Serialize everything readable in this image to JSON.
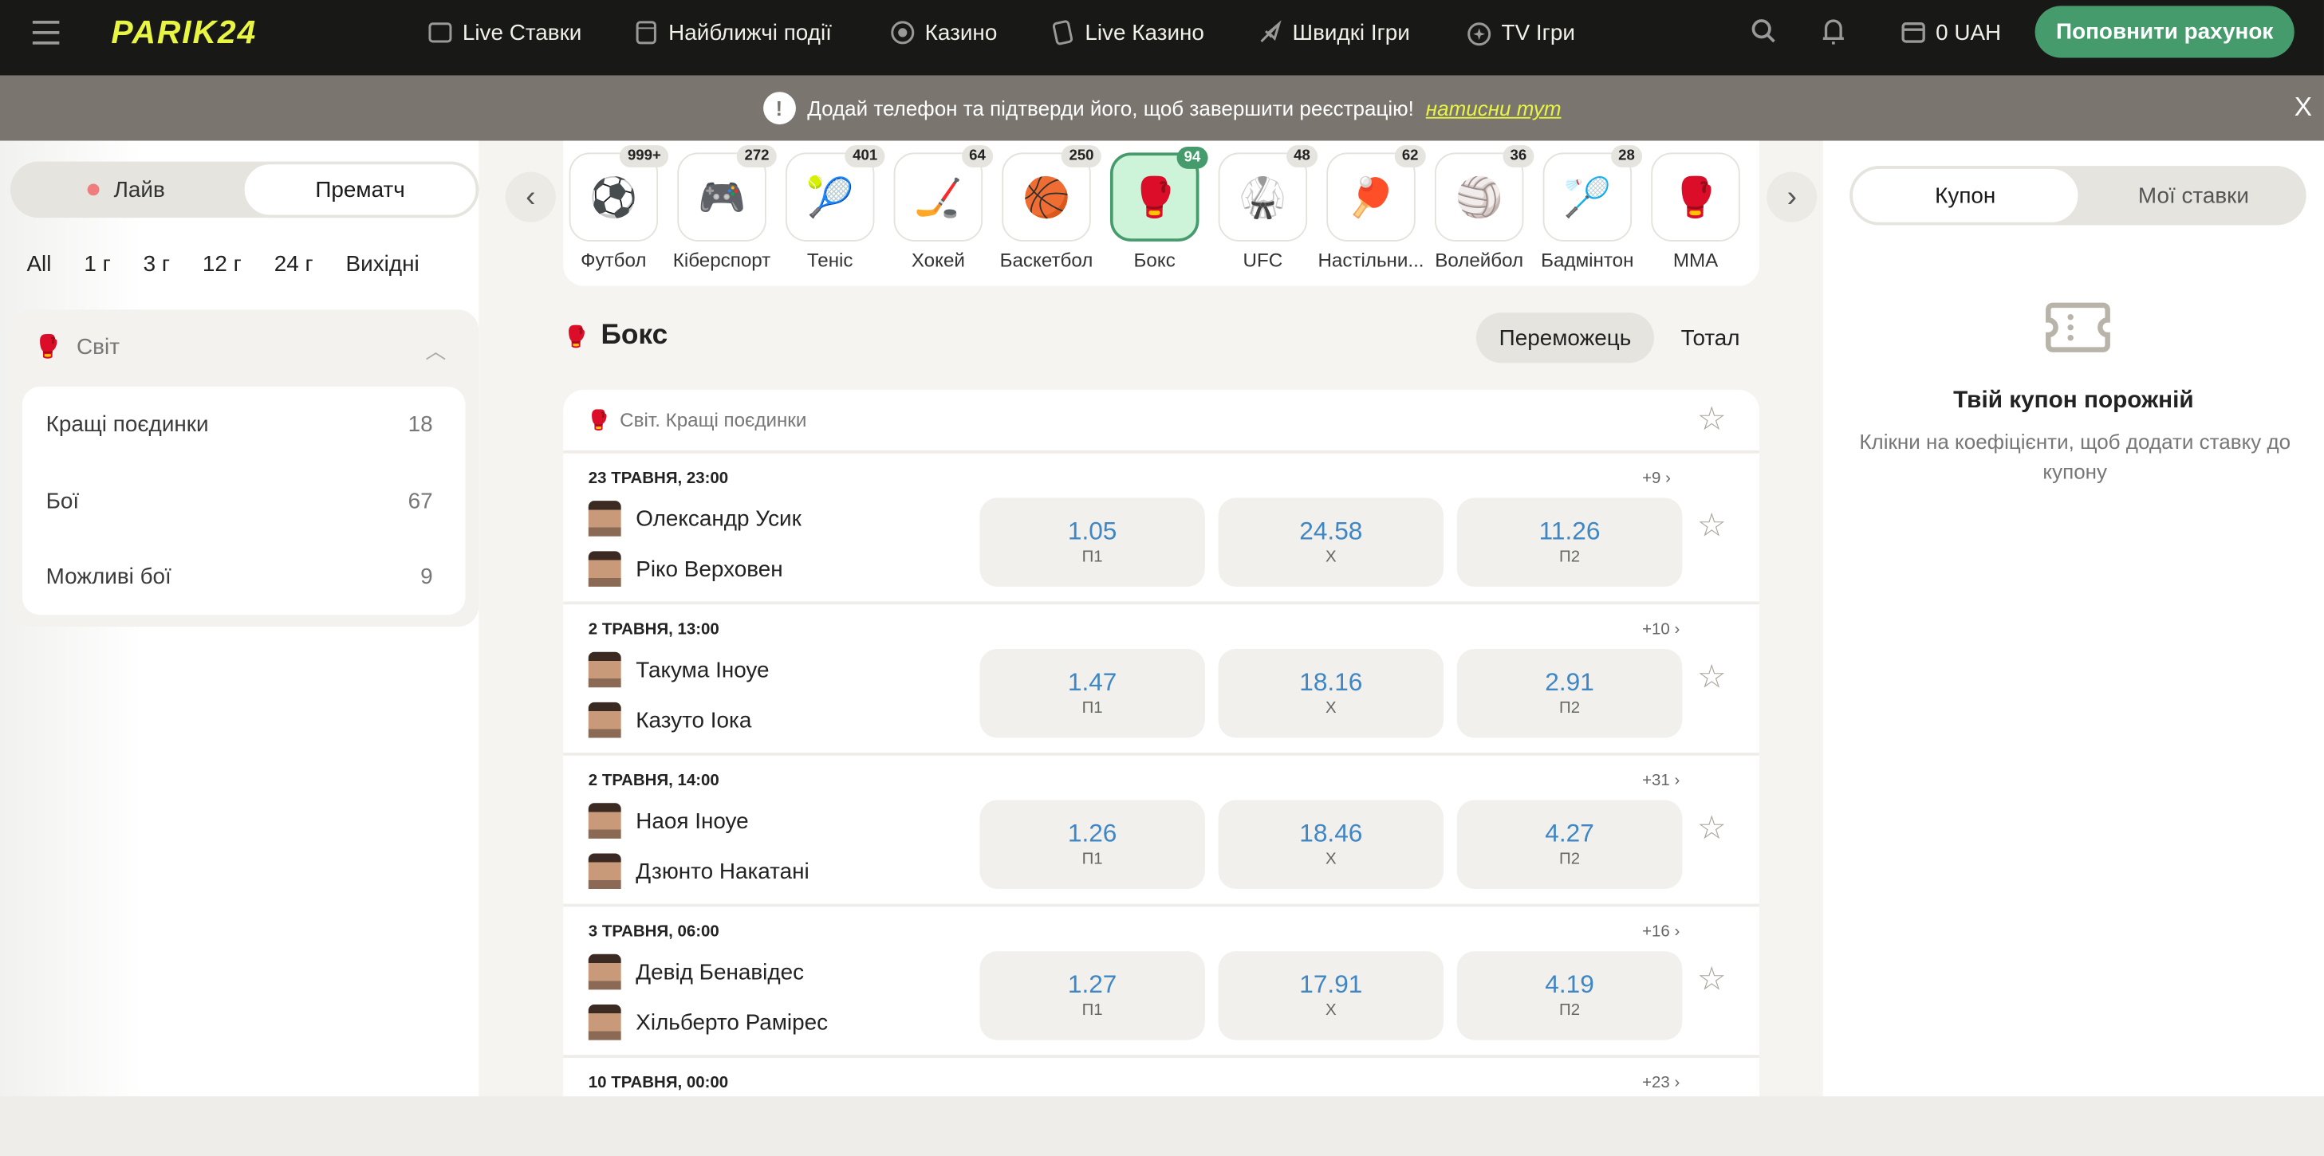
{
  "header": {
    "logo": "PARIK24",
    "nav": [
      {
        "label": "Live Ставки",
        "icon": "scoreboard-icon"
      },
      {
        "label": "Найближчі події",
        "icon": "calendar-icon"
      },
      {
        "label": "Казино",
        "icon": "chip-icon"
      },
      {
        "label": "Live Казино",
        "icon": "cards-icon"
      },
      {
        "label": "Швидкі Ігри",
        "icon": "rocket-icon"
      },
      {
        "label": "TV Ігри",
        "icon": "tv-star-icon"
      }
    ],
    "balance": "0 UAH",
    "topup": "Поповнити рахунок",
    "brand_color": "#459b6c",
    "logo_color": "#e8f542"
  },
  "banner": {
    "text": "Додай телефон та підтверди його, щоб завершити реєстрацію!",
    "link": "натисни тут",
    "close": "X"
  },
  "left": {
    "mode": {
      "live": "Лайв",
      "prematch": "Прематч",
      "selected": "Прематч"
    },
    "filters": [
      "All",
      "1 г",
      "3 г",
      "12 г",
      "24 г",
      "Вихідні"
    ],
    "group": {
      "title": "Світ",
      "items": [
        {
          "label": "Кращі поєдинки",
          "count": "18"
        },
        {
          "label": "Бої",
          "count": "67"
        },
        {
          "label": "Можливі бої",
          "count": "9"
        }
      ]
    }
  },
  "sports": [
    {
      "label": "Футбол",
      "count": "999+",
      "icon": "⚽"
    },
    {
      "label": "Кіберспорт",
      "count": "272",
      "icon": "🎮"
    },
    {
      "label": "Теніс",
      "count": "401",
      "icon": "🎾"
    },
    {
      "label": "Хокей",
      "count": "64",
      "icon": "🏒"
    },
    {
      "label": "Баскетбол",
      "count": "250",
      "icon": "🏀"
    },
    {
      "label": "Бокс",
      "count": "94",
      "icon": "🥊",
      "active": true
    },
    {
      "label": "UFC",
      "count": "48",
      "icon": "🥋"
    },
    {
      "label": "Настільни...",
      "count": "62",
      "icon": "🏓"
    },
    {
      "label": "Волейбол",
      "count": "36",
      "icon": "🏐"
    },
    {
      "label": "Бадмінтон",
      "count": "28",
      "icon": "🏸"
    },
    {
      "label": "MMA",
      "count": "",
      "icon": "🥊"
    }
  ],
  "main": {
    "title": "Бокс",
    "tabs": [
      "Переможець",
      "Тотал"
    ],
    "active_tab": "Переможець",
    "league": "Світ. Кращі поєдинки",
    "matches": [
      {
        "date": "23 ТРАВНЯ, 23:00",
        "more": "+9",
        "home": "Олександр Усик",
        "away": "Ріко Верховен",
        "odds": [
          {
            "v": "1.05",
            "l": "П1"
          },
          {
            "v": "24.58",
            "l": "Х"
          },
          {
            "v": "11.26",
            "l": "П2"
          }
        ]
      },
      {
        "date": "2 ТРАВНЯ, 13:00",
        "more": "+10",
        "home": "Такума Іноуе",
        "away": "Казуто Іока",
        "odds": [
          {
            "v": "1.47",
            "l": "П1"
          },
          {
            "v": "18.16",
            "l": "Х"
          },
          {
            "v": "2.91",
            "l": "П2"
          }
        ]
      },
      {
        "date": "2 ТРАВНЯ, 14:00",
        "more": "+31",
        "home": "Наоя Іноуе",
        "away": "Дзюнто Накатані",
        "odds": [
          {
            "v": "1.26",
            "l": "П1"
          },
          {
            "v": "18.46",
            "l": "Х"
          },
          {
            "v": "4.27",
            "l": "П2"
          }
        ]
      },
      {
        "date": "3 ТРАВНЯ, 06:00",
        "more": "+16",
        "home": "Девід Бенавідес",
        "away": "Хільберто Рамірес",
        "odds": [
          {
            "v": "1.27",
            "l": "П1"
          },
          {
            "v": "17.91",
            "l": "Х"
          },
          {
            "v": "4.19",
            "l": "П2"
          }
        ]
      },
      {
        "date": "10 ТРАВНЯ, 00:00",
        "more": "+23",
        "home": "",
        "away": "",
        "odds": []
      }
    ]
  },
  "coupon": {
    "tabs": [
      "Купон",
      "Мої ставки"
    ],
    "title": "Твій купон порожній",
    "text": "Клікни на коефіцієнти, щоб додати ставку до купону"
  }
}
